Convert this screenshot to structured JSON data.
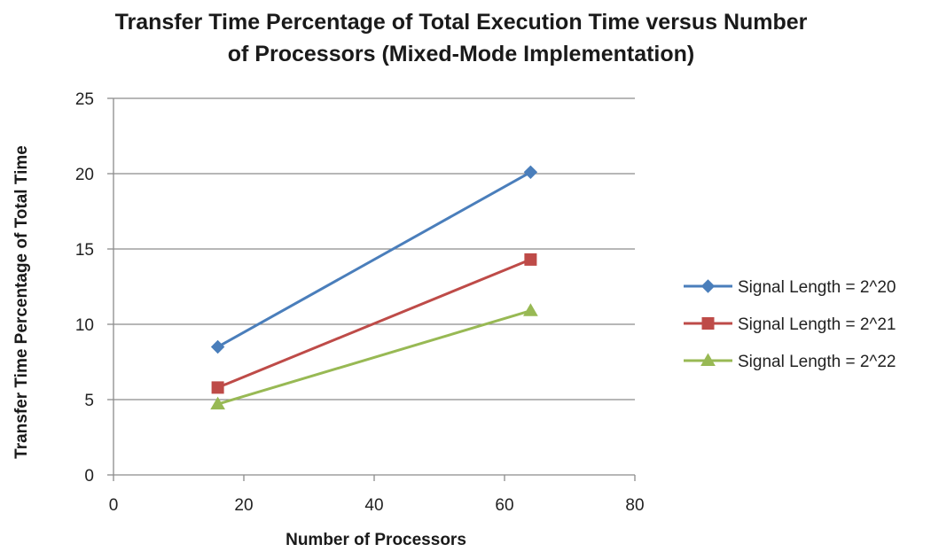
{
  "chart_data": {
    "type": "line",
    "title_lines": [
      "Transfer Time Percentage of Total Execution Time versus Number",
      "of Processors (Mixed-Mode Implementation)"
    ],
    "xlabel": "Number of Processors",
    "ylabel": "Transfer Time Percentage of Total Time",
    "xlim": [
      0,
      80
    ],
    "ylim": [
      0,
      25
    ],
    "x_ticks": [
      0,
      20,
      40,
      60,
      80
    ],
    "y_ticks": [
      0,
      5,
      10,
      15,
      20,
      25
    ],
    "grid": "horizontal",
    "legend_position": "right",
    "series": [
      {
        "name": "Signal Length = 2^20",
        "color": "#4a7ebb",
        "marker": "diamond",
        "x": [
          16,
          64
        ],
        "y": [
          8.5,
          20.1
        ]
      },
      {
        "name": "Signal Length = 2^21",
        "color": "#be4b48",
        "marker": "square",
        "x": [
          16,
          64
        ],
        "y": [
          5.8,
          14.3
        ]
      },
      {
        "name": "Signal Length = 2^22",
        "color": "#98b954",
        "marker": "triangle",
        "x": [
          16,
          64
        ],
        "y": [
          4.7,
          10.9
        ]
      }
    ]
  }
}
